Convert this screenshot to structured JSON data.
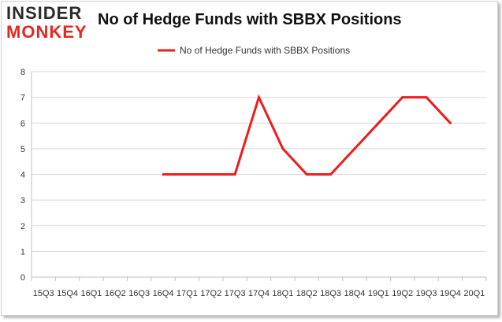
{
  "brand": {
    "line1": "INSIDER",
    "line2": "MONKEY"
  },
  "colors": {
    "series": "#ee1c1c",
    "grid": "#d9d9d9",
    "axis": "#bfbfbf"
  },
  "chart_data": {
    "type": "line",
    "title": "No of Hedge Funds with SBBX Positions",
    "xlabel": "",
    "ylabel": "",
    "ylim": [
      0,
      8
    ],
    "yticks": [
      0,
      1,
      2,
      3,
      4,
      5,
      6,
      7,
      8
    ],
    "grid": true,
    "legend": "top-center",
    "categories": [
      "15Q3",
      "15Q4",
      "16Q1",
      "16Q2",
      "16Q3",
      "16Q4",
      "17Q1",
      "17Q2",
      "17Q3",
      "17Q4",
      "18Q1",
      "18Q2",
      "18Q3",
      "18Q4",
      "19Q1",
      "19Q2",
      "19Q3",
      "19Q4",
      "20Q1"
    ],
    "series": [
      {
        "name": "No of Hedge Funds with SBBX Positions",
        "values": [
          null,
          null,
          null,
          null,
          null,
          4,
          4,
          4,
          4,
          7,
          5,
          4,
          4,
          5,
          6,
          7,
          7,
          6,
          null
        ]
      }
    ]
  }
}
